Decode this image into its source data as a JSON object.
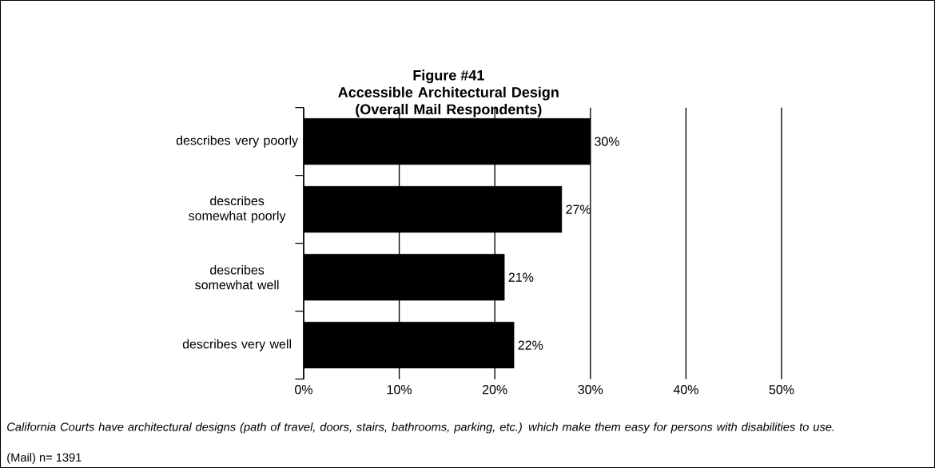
{
  "chart_data": {
    "type": "bar",
    "orientation": "horizontal",
    "title": "Figure #41",
    "subtitle": "Accessible Architectural Design (Overall Mail Respondents)",
    "categories": [
      "describes very poorly",
      "describes somewhat poorly",
      "describes somewhat well",
      "describes very well"
    ],
    "values": [
      30,
      27,
      21,
      22
    ],
    "value_labels": [
      "30%",
      "27%",
      "21%",
      "22%"
    ],
    "color": "#000000",
    "xlim": [
      0,
      50
    ],
    "xticks": [
      {
        "value": 0,
        "label": "0%"
      },
      {
        "value": 10,
        "label": "10%"
      },
      {
        "value": 20,
        "label": "20%"
      },
      {
        "value": 30,
        "label": "30%"
      },
      {
        "value": 40,
        "label": "40%"
      },
      {
        "value": 50,
        "label": "50%"
      }
    ],
    "grid": "x",
    "annotations": [
      "California Courts have architectural designs (path of travel, doors, stairs, bathrooms, parking, etc.) which make them easy for persons with disabilities to use.",
      "(Mail) n= 1391"
    ]
  }
}
